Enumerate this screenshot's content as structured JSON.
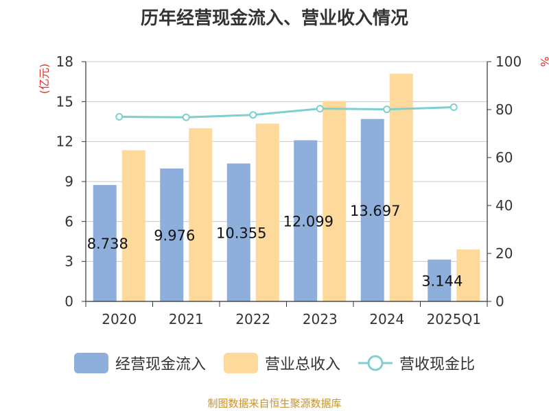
{
  "title": "历年经营现金流入、营业收入情况",
  "source": "制图数据来自恒生聚源数据库",
  "chart_data": {
    "type": "bar",
    "title": "历年经营现金流入、营业收入情况",
    "categories": [
      "2020",
      "2021",
      "2022",
      "2023",
      "2024",
      "2025Q1"
    ],
    "left_axis": {
      "unit": "(亿元)",
      "ylim": [
        0,
        18
      ],
      "ticks": [
        0,
        3,
        6,
        9,
        12,
        15,
        18
      ]
    },
    "right_axis": {
      "unit": "%",
      "ylim": [
        0,
        100
      ],
      "ticks": [
        0,
        20,
        40,
        60,
        80,
        100
      ]
    },
    "grid": true,
    "legend_position": "bottom",
    "series": [
      {
        "name": "经营现金流入",
        "type": "bar",
        "axis": "left",
        "color": "#8eafdb",
        "values": [
          8.738,
          9.976,
          10.355,
          12.099,
          13.697,
          3.144
        ],
        "labels": [
          "8.738",
          "9.976",
          "10.355",
          "12.099",
          "13.697",
          "3.144"
        ]
      },
      {
        "name": "营业总收入",
        "type": "bar",
        "axis": "left",
        "color": "#fdd99b",
        "values": [
          11.35,
          13.0,
          13.35,
          15.05,
          17.1,
          3.9
        ]
      },
      {
        "name": "营收现金比",
        "type": "line",
        "axis": "right",
        "color": "#7fcfcf",
        "values": [
          77.0,
          76.8,
          77.8,
          80.4,
          80.1,
          81.0
        ]
      }
    ]
  }
}
